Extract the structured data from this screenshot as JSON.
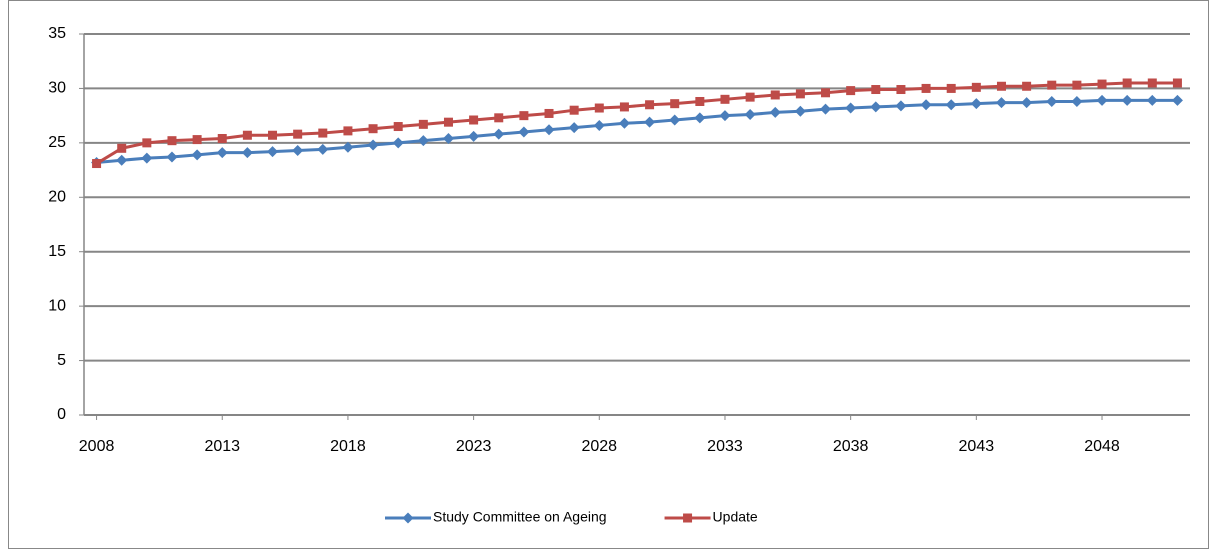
{
  "chart_data": {
    "type": "line",
    "x": [
      2008,
      2009,
      2010,
      2011,
      2012,
      2013,
      2014,
      2015,
      2016,
      2017,
      2018,
      2019,
      2020,
      2021,
      2022,
      2023,
      2024,
      2025,
      2026,
      2027,
      2028,
      2029,
      2030,
      2031,
      2032,
      2033,
      2034,
      2035,
      2036,
      2037,
      2038,
      2039,
      2040,
      2041,
      2042,
      2043,
      2044,
      2045,
      2046,
      2047,
      2048,
      2049,
      2050,
      2051
    ],
    "series": [
      {
        "name": "Study Committee on Ageing",
        "color": "#4a7ebb",
        "marker": "diamond",
        "values": [
          23.2,
          23.4,
          23.6,
          23.7,
          23.9,
          24.1,
          24.1,
          24.2,
          24.3,
          24.4,
          24.6,
          24.8,
          25.0,
          25.2,
          25.4,
          25.6,
          25.8,
          26.0,
          26.2,
          26.4,
          26.6,
          26.8,
          26.9,
          27.1,
          27.3,
          27.5,
          27.6,
          27.8,
          27.9,
          28.1,
          28.2,
          28.3,
          28.4,
          28.5,
          28.5,
          28.6,
          28.7,
          28.7,
          28.8,
          28.8,
          28.9,
          28.9,
          28.9,
          28.9
        ]
      },
      {
        "name": "Update",
        "color": "#be4b48",
        "marker": "square",
        "values": [
          23.1,
          24.5,
          25.0,
          25.2,
          25.3,
          25.4,
          25.7,
          25.7,
          25.8,
          25.9,
          26.1,
          26.3,
          26.5,
          26.7,
          26.9,
          27.1,
          27.3,
          27.5,
          27.7,
          28.0,
          28.2,
          28.3,
          28.5,
          28.6,
          28.8,
          29.0,
          29.2,
          29.4,
          29.5,
          29.6,
          29.8,
          29.9,
          29.9,
          30.0,
          30.0,
          30.1,
          30.2,
          30.2,
          30.3,
          30.3,
          30.4,
          30.5,
          30.5,
          30.5
        ]
      }
    ],
    "xlim": [
      2007.5,
      2051.5
    ],
    "xticks": [
      2008,
      2013,
      2018,
      2023,
      2028,
      2033,
      2038,
      2043,
      2048
    ],
    "ylim": [
      0,
      35
    ],
    "yticks": [
      0,
      5,
      10,
      15,
      20,
      25,
      30,
      35
    ],
    "grid": true,
    "legend": "bottom"
  }
}
